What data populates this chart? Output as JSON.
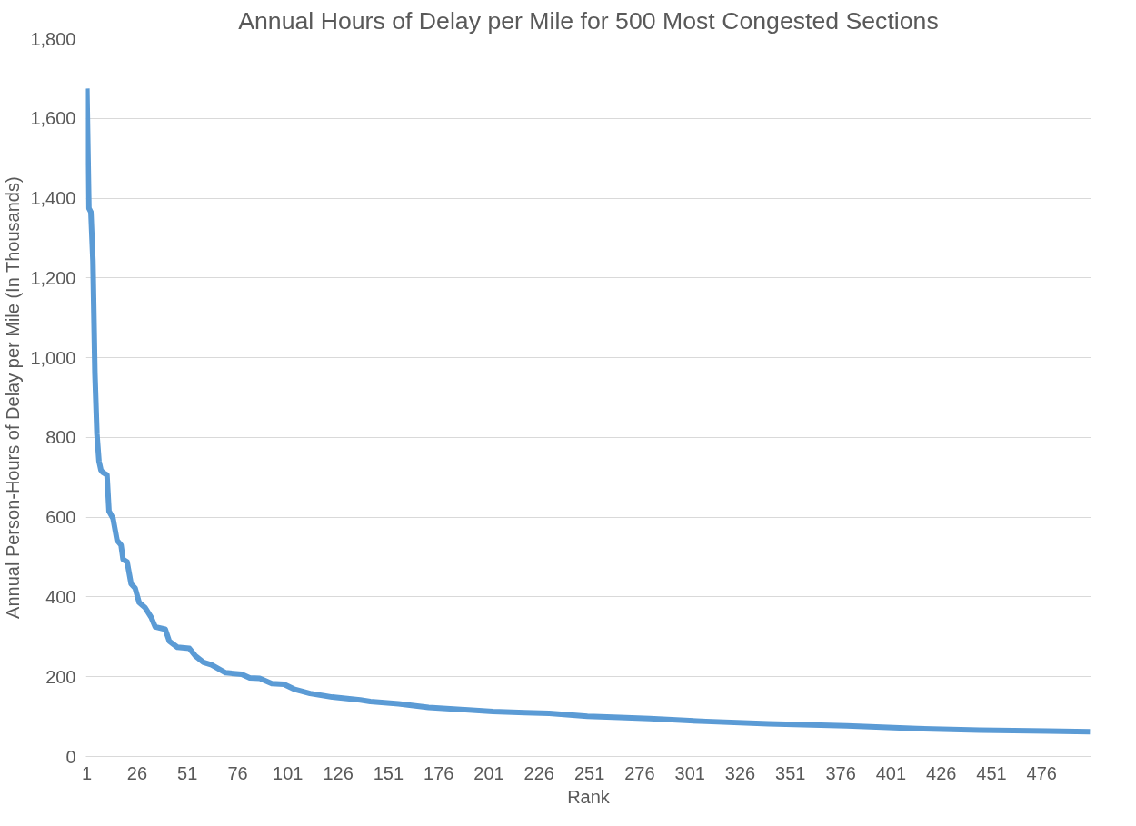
{
  "chart_data": {
    "type": "line",
    "title": "Annual Hours of Delay per Mile for 500 Most Congested Sections",
    "xlabel": "Rank",
    "ylabel": "Annual Person-Hours of Delay per Mile (In Thousands)",
    "xlim": [
      0.5,
      500.5
    ],
    "xticks": [
      1,
      26,
      51,
      76,
      101,
      126,
      151,
      176,
      201,
      226,
      251,
      276,
      301,
      326,
      351,
      376,
      401,
      426,
      451,
      476
    ],
    "ylim": [
      0,
      1800
    ],
    "yticks": [
      {
        "value": 0,
        "label": "0"
      },
      {
        "value": 200,
        "label": "200"
      },
      {
        "value": 400,
        "label": "400"
      },
      {
        "value": 600,
        "label": "600"
      },
      {
        "value": 800,
        "label": "800"
      },
      {
        "value": 1000,
        "label": "1,000"
      },
      {
        "value": 1200,
        "label": "1,200"
      },
      {
        "value": 1400,
        "label": "1,400"
      },
      {
        "value": 1600,
        "label": "1,600"
      },
      {
        "value": 1800,
        "label": "1,800"
      }
    ],
    "grid": "y",
    "marker": "none",
    "line_style": "solid",
    "series": [
      {
        "color": "#5b9bd5",
        "x": [
          1,
          2,
          3,
          4,
          5,
          6,
          7,
          8,
          9,
          11,
          12,
          14,
          16,
          18,
          19,
          21,
          23,
          25,
          27,
          30,
          33,
          35,
          40,
          42,
          46,
          52,
          55,
          59,
          63,
          70,
          78,
          82,
          87,
          93,
          99,
          104,
          112,
          123,
          137,
          142,
          156,
          171,
          187,
          203,
          219,
          231,
          250,
          266,
          281,
          309,
          340,
          379,
          414,
          445,
          479,
          500
        ],
        "values": [
          1675,
          1375,
          1365,
          1243,
          960,
          808,
          741,
          718,
          712,
          706,
          615,
          597,
          542,
          530,
          494,
          488,
          433,
          422,
          386,
          373,
          349,
          325,
          319,
          289,
          274,
          271,
          252,
          236,
          230,
          210,
          206,
          197,
          196,
          183,
          181,
          169,
          158,
          149,
          142,
          138,
          132,
          123,
          118,
          113,
          110,
          108,
          101,
          98,
          95,
          88,
          82,
          77,
          70,
          66,
          64,
          62
        ]
      }
    ]
  }
}
